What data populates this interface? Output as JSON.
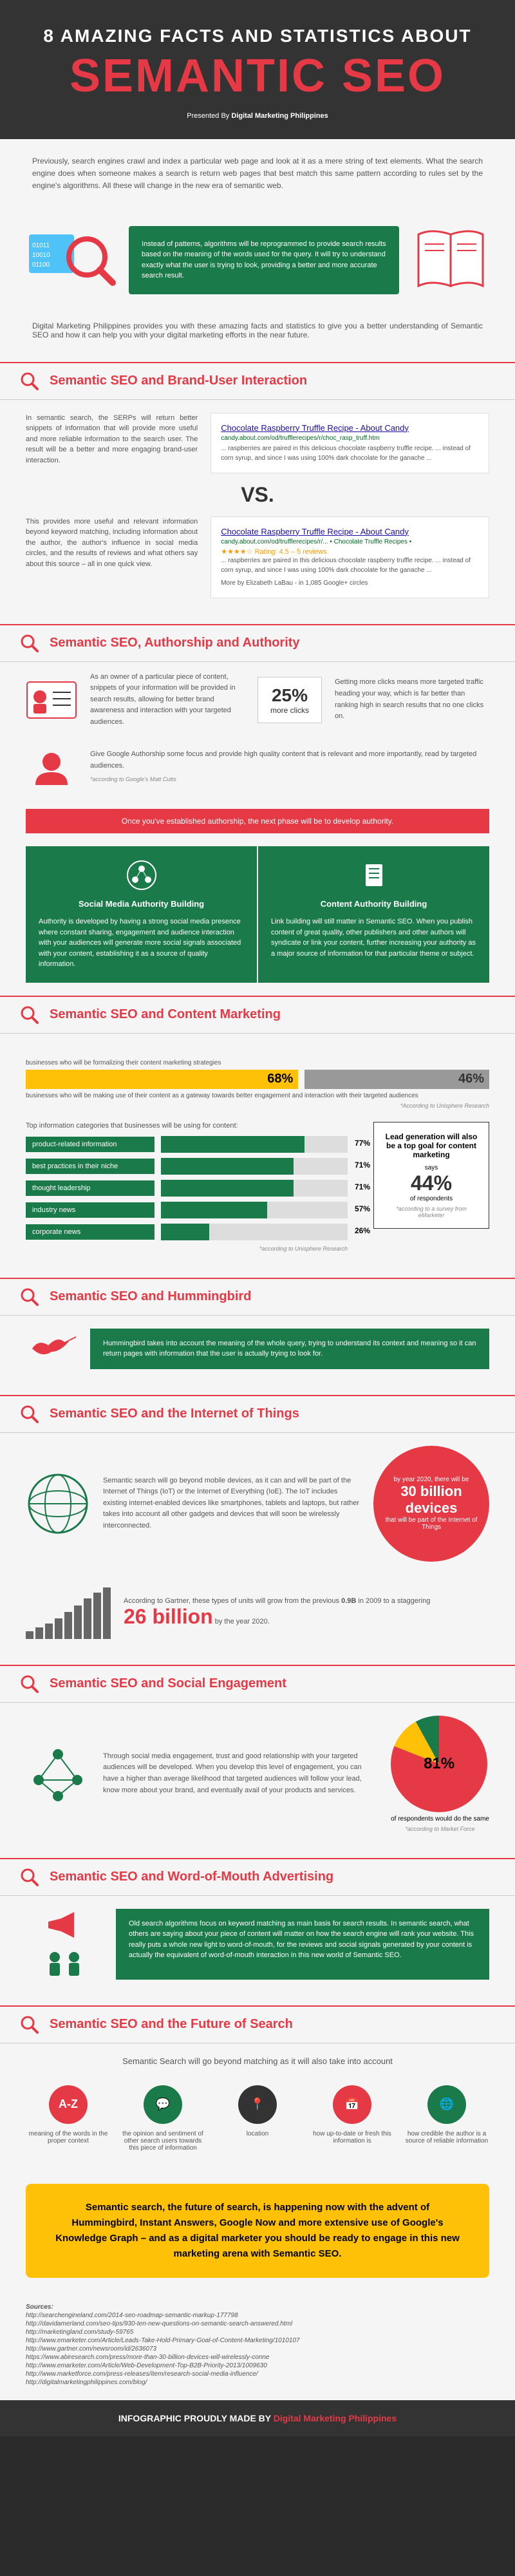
{
  "header": {
    "line1": "8 AMAZING FACTS AND STATISTICS ABOUT",
    "line2": "SEMANTIC SEO",
    "presented": "Presented By",
    "brand": "Digital Marketing Philippines"
  },
  "intro": "Previously, search engines crawl and index a particular web page and look at it as a mere string of text elements. What the search engine does when someone makes a search is return web pages that best match this same pattern according to rules set by the engine's algorithms. All these will change in the new era of semantic web.",
  "hero_box": "Instead of patterns, algorithms will be reprogrammed to provide search results based on the meaning of the words used for the query. It will try to understand exactly what the user is trying to look, providing a better and more accurate search result.",
  "subtext": "Digital Marketing Philippines provides you with these amazing facts and statistics to give you a better understanding of Semantic SEO and how it can help you with your digital marketing efforts in the near future.",
  "sections": [
    "Semantic SEO and Brand-User Interaction",
    "Semantic SEO, Authorship and Authority",
    "Semantic SEO and Content Marketing",
    "Semantic SEO and Hummingbird",
    "Semantic SEO and the Internet of Things",
    "Semantic SEO and Social Engagement",
    "Semantic SEO and Word-of-Mouth Advertising",
    "Semantic SEO and the Future of Search"
  ],
  "s1": {
    "p1": "In semantic search, the SERPs will return better snippets of information that will provide more useful and more reliable information to the search user. The result will be a better and more engaging brand-user interaction.",
    "p2": "This provides more useful and relevant information beyond keyword matching, including information about the author, the author's influence in social media circles, and the results of reviews and what others say about this source – all in one quick view.",
    "serp1_title": "Chocolate Raspberry Truffle Recipe - About Candy",
    "serp1_url": "candy.about.com/od/trufflerecipes/r/choc_rasp_truff.htm",
    "serp1_desc": "... raspberries are paired in this delicious chocolate raspberry truffle recipe. ... instead of corn syrup, and since I was using 100% dark chocolate for the ganache ...",
    "serp2_title": "Chocolate Raspberry Truffle Recipe - About Candy",
    "serp2_url": "candy.about.com/od/trufflerecipes/r/... • Chocolate Truffle Recipes •",
    "serp2_rating": "★★★★☆ Rating: 4.5 – 5 reviews",
    "serp2_desc": "... raspberries are paired in this delicious chocolate raspberry truffle recipe. ... instead of corn syrup, and since I was using 100% dark chocolate for the ganache ...",
    "serp2_more": "More by Elizabeth LaBau - in 1,085 Google+ circles",
    "vs": "VS."
  },
  "s2": {
    "p1": "As an owner of a particular piece of content, snippets of your information will be provided in search results, allowing for better brand awareness and interaction with your targeted audiences.",
    "stat_num": "25%",
    "stat_lbl": "more clicks",
    "p2": "Getting more clicks means more targeted traffic heading your way, which is far better than ranking high in search results that no one clicks on.",
    "p3": "Give Google Authorship some focus and provide high quality content that is relevant and more importantly, read by targeted audiences.",
    "p3_note": "*according to Google's Matt Cutts",
    "banner": "Once you've established authorship, the next phase will be to develop authority.",
    "panel1_h": "Social Media Authority Building",
    "panel1_t": "Authority is developed by having a strong social media presence where constant sharing, engagement and audience interaction with your audiences will generate more social signals associated with your content, establishing it as a source of quality information.",
    "panel2_h": "Content Authority Building",
    "panel2_t": "Link building will still matter in Semantic SEO. When you publish content of great quality, other publishers and other authors will syndicate or link your content, further increasing your authority as a major source of information for that particular theme or subject."
  },
  "s3": {
    "cm1_val": "68%",
    "cm1_lbl": "businesses who will be formalizing their content marketing strategies",
    "cm2_val": "46%",
    "cm2_lbl": "businesses who will be making use of their content as a gateway towards better engagement and interaction with their targeted audiences",
    "cm_note": "*According to Unisphere Research",
    "bars_title": "Top information categories that businesses will be using for content:",
    "bars": [
      {
        "label": "product-related information",
        "val": 77
      },
      {
        "label": "best practices in their niche",
        "val": 71
      },
      {
        "label": "thought leadership",
        "val": 71
      },
      {
        "label": "industry news",
        "val": 57
      },
      {
        "label": "corporate news",
        "val": 26
      }
    ],
    "bars_note": "*according to Unisphere Research",
    "lead_h": "Lead generation will also be a top goal for content marketing",
    "lead_says": "says",
    "lead_num": "44%",
    "lead_sub": "of respondents",
    "lead_note": "*according to a survey from eMarketer"
  },
  "s4": {
    "text": "Hummingbird takes into account the meaning of the whole query, trying to understand its context and meaning so it can return pages with information that the user is actually trying to look for."
  },
  "s5": {
    "p1": "Semantic search will go beyond mobile devices, as it can and will be part of the Internet of Things (IoT) or the Internet of Everything (IoE). The IoT includes existing internet-enabled devices like smartphones, tablets and laptops, but rather takes into account all other gadgets and devices that will soon be wirelessly interconnected.",
    "circle_top": "by year 2020, there will be",
    "circle_num": "30 billion devices",
    "circle_sub": "that will be part of the Internet of Things",
    "growth_t1": "According to Gartner, these types of units will grow from the previous",
    "growth_v1": "0.9B",
    "growth_t2": "in 2009 to a staggering",
    "growth_v2": "26 billion",
    "growth_t3": "by the year 2020."
  },
  "s6": {
    "text": "Through social media engagement, trust and good relationship with your targeted audiences will be developed. When you develop this level of engagement, you can have a higher than average likelihood that targeted audiences will follow your lead, know more about your brand, and eventually avail of your products and services.",
    "pie_val": "81%",
    "pie_lbl": "of respondents would do the same",
    "pie_note": "*according to Market Force"
  },
  "s7": {
    "text": "Old search algorithms focus on keyword matching as main basis for search results. In semantic search, what others are saying about your piece of content will matter on how the search engine will rank your website. This really puts a whole new light to word-of-mouth, for the reviews and social signals generated by your content is actually the equivalent of word-of-mouth interaction in this new world of Semantic SEO."
  },
  "s8": {
    "intro": "Semantic Search will go beyond matching as it will also take into account",
    "items": [
      {
        "color": "#e63946",
        "label": "meaning of the words in the proper context"
      },
      {
        "color": "#1a7a4a",
        "label": "the opinion and sentiment of other search users towards this piece of information"
      },
      {
        "color": "#333333",
        "label": "location"
      },
      {
        "color": "#e63946",
        "label": "how up-to-date or fresh this information is"
      },
      {
        "color": "#1a7a4a",
        "label": "how credible the author is a source of reliable information"
      }
    ]
  },
  "cta": "Semantic search, the future of search, is happening now with the advent of Hummingbird, Instant Answers, Google Now and more extensive use of Google's Knowledge Graph – and as a digital marketer you should be ready to engage in this new marketing arena with Semantic SEO.",
  "sources_h": "Sources:",
  "sources": [
    "http://searchengineland.com/2014-seo-roadmap-semantic-markup-177798",
    "http://davidamerland.com/seo-tips/930-ten-new-questions-on-semantic-search-answered.html",
    "http://marketingland.com/study-59765",
    "http://www.emarketer.com/Article/Leads-Take-Hold-Primary-Goal-of-Content-Marketing/1010107",
    "http://www.gartner.com/newsroom/id/2636073",
    "https://www.abiresearch.com/press/more-than-30-billion-devices-will-wirelessly-conne",
    "http://www.emarketer.com/Article/Web-Development-Top-B2B-Priority-2013/1009630",
    "http://www.marketforce.com/press-releases/item/research-social-media-influence/",
    "http://digitalmarketingphilippines.com/blog/"
  ],
  "footer": "INFOGRAPHIC PROUDLY MADE BY",
  "footer_brand": "Digital Marketing Philippines",
  "colors": {
    "red": "#e63946",
    "green": "#1a7a4a",
    "yellow": "#ffc107",
    "dark": "#333333"
  }
}
